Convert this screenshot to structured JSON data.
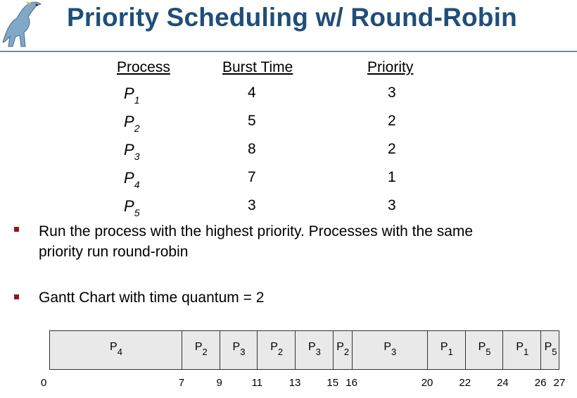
{
  "title": "Priority Scheduling w/ Round-Robin",
  "table": {
    "headers": [
      "Process",
      "Burst Time",
      "Priority"
    ],
    "rows": [
      {
        "process": "P",
        "sub": "1",
        "burst": "4",
        "priority": "3"
      },
      {
        "process": "P",
        "sub": "2",
        "burst": "5",
        "priority": "2"
      },
      {
        "process": "P",
        "sub": "3",
        "burst": "8",
        "priority": "2"
      },
      {
        "process": "P",
        "sub": "4",
        "burst": "7",
        "priority": "1"
      },
      {
        "process": "P",
        "sub": "5",
        "burst": "3",
        "priority": "3"
      }
    ]
  },
  "bullets": [
    [
      "Run the process with the highest priority. Processes with the same",
      "priority run round-robin"
    ],
    [
      "Gantt Chart with time quantum = 2"
    ]
  ],
  "colors": {
    "title": "#1f4e79",
    "bullet": "#8b1a1a",
    "gantt_fill": "#e9e9e9"
  },
  "gantt": {
    "segments": [
      {
        "process": "P",
        "sub": "4",
        "start": 0,
        "end": 7
      },
      {
        "process": "P",
        "sub": "2",
        "start": 7,
        "end": 9
      },
      {
        "process": "P",
        "sub": "3",
        "start": 9,
        "end": 11
      },
      {
        "process": "P",
        "sub": "2",
        "start": 11,
        "end": 13
      },
      {
        "process": "P",
        "sub": "3",
        "start": 13,
        "end": 15
      },
      {
        "process": "P",
        "sub": "2",
        "start": 15,
        "end": 16
      },
      {
        "process": "P",
        "sub": "3",
        "start": 16,
        "end": 20
      },
      {
        "process": "P",
        "sub": "1",
        "start": 20,
        "end": 22
      },
      {
        "process": "P",
        "sub": "5",
        "start": 22,
        "end": 24
      },
      {
        "process": "P",
        "sub": "1",
        "start": 24,
        "end": 26
      },
      {
        "process": "P",
        "sub": "5",
        "start": 26,
        "end": 27
      }
    ],
    "ticks": [
      "0",
      "7",
      "9",
      "11",
      "13",
      "15",
      "16",
      "20",
      "22",
      "24",
      "26",
      "27"
    ]
  }
}
